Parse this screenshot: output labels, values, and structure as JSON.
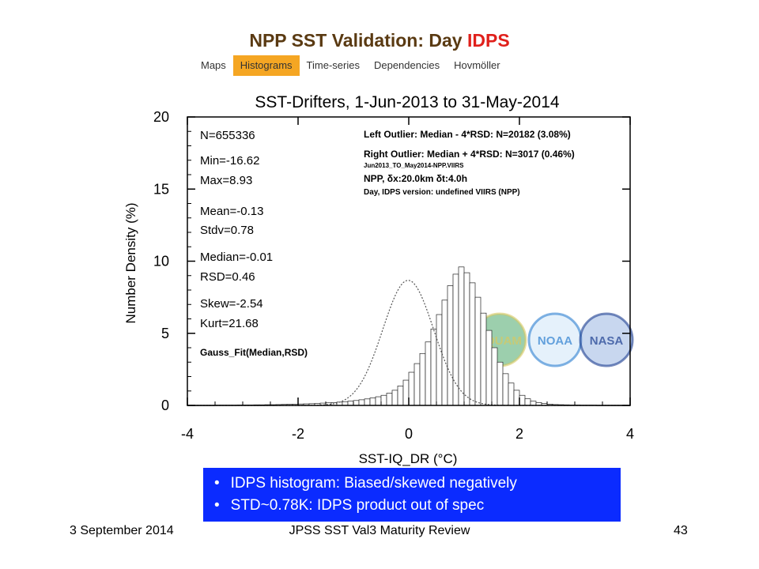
{
  "slide": {
    "title_main": "NPP SST Validation: Day ",
    "title_highlight": "IDPS"
  },
  "tabs": [
    {
      "label": "Maps",
      "active": false
    },
    {
      "label": "Histograms",
      "active": true
    },
    {
      "label": "Time-series",
      "active": false
    },
    {
      "label": "Dependencies",
      "active": false
    },
    {
      "label": "Hovmöller",
      "active": false
    }
  ],
  "chart_data": {
    "type": "bar",
    "title": "SST-Drifters, 1-Jun-2013 to 31-May-2014",
    "xlabel": "SST-IQ_DR (°C)",
    "ylabel": "Number Density (%)",
    "xlim": [
      -4,
      4
    ],
    "ylim": [
      0,
      20
    ],
    "xticks": [
      -4,
      -2,
      0,
      2,
      4
    ],
    "yticks": [
      0,
      5,
      10,
      15,
      20
    ],
    "bin_width": 0.1,
    "bin_start": -4.0,
    "values": [
      0.01,
      0.01,
      0.01,
      0.01,
      0.01,
      0.02,
      0.02,
      0.02,
      0.02,
      0.03,
      0.03,
      0.03,
      0.04,
      0.04,
      0.05,
      0.05,
      0.06,
      0.07,
      0.08,
      0.09,
      0.1,
      0.11,
      0.12,
      0.14,
      0.16,
      0.18,
      0.2,
      0.23,
      0.26,
      0.3,
      0.34,
      0.39,
      0.45,
      0.52,
      0.6,
      0.7,
      0.85,
      1.05,
      1.35,
      1.75,
      2.3,
      2.9,
      3.6,
      4.4,
      5.3,
      6.3,
      7.3,
      8.3,
      9.1,
      9.6,
      9.2,
      8.5,
      7.5,
      6.4,
      5.2,
      4.0,
      3.0,
      2.2,
      1.55,
      1.05,
      0.7,
      0.46,
      0.3,
      0.2,
      0.13,
      0.09,
      0.06,
      0.05,
      0.04,
      0.03,
      0.03,
      0.02,
      0.02,
      0.02,
      0.01,
      0.01,
      0.01,
      0.01,
      0.01,
      0.01
    ],
    "gauss_fit": {
      "median": -0.01,
      "rsd": 0.46
    },
    "stats": [
      "N=655336",
      "Min=-16.62",
      "Max=8.93",
      "Mean=-0.13",
      "Stdv=0.78",
      "Median=-0.01",
      "RSD=0.46",
      "Skew=-2.54",
      "Kurt=21.68",
      "Gauss_Fit(Median,RSD)"
    ],
    "annotations": [
      "Left Outlier:  Median - 4*RSD: N=20182 (3.08%)",
      "Right Outlier: Median + 4*RSD: N=3017 (0.46%)",
      "Jun2013_TO_May2014-NPP.VIIRS",
      "NPP, δx:20.0km δt:4.0h",
      "Day, IDPS version:  undefined VIIRS (NPP)"
    ],
    "logos": [
      "SQUAM",
      "NOAA",
      "NASA"
    ],
    "grid": false
  },
  "callout": {
    "bullets": [
      "IDPS histogram: Biased/skewed negatively",
      "STD~0.78K: IDPS product out of spec"
    ]
  },
  "footer": {
    "date": "3 September 2014",
    "center": "JPSS SST Val3 Maturity Review",
    "page": "43"
  }
}
